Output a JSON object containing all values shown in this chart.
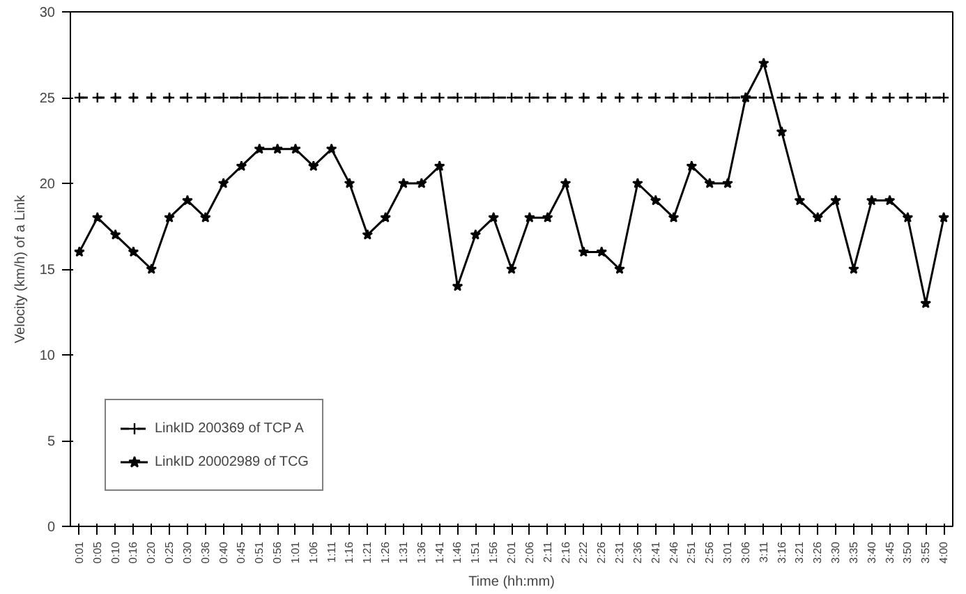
{
  "chart_data": {
    "type": "line",
    "xlabel": "Time (hh:mm)",
    "ylabel": "Velocity (km/h) of a Link",
    "categories": [
      "0:01",
      "0:05",
      "0:10",
      "0:16",
      "0:20",
      "0:25",
      "0:30",
      "0:36",
      "0:40",
      "0:45",
      "0:51",
      "0:56",
      "1:01",
      "1:06",
      "1:11",
      "1:16",
      "1:21",
      "1:26",
      "1:31",
      "1:36",
      "1:41",
      "1:46",
      "1:51",
      "1:56",
      "2:01",
      "2:06",
      "2:11",
      "2:16",
      "2:22",
      "2:26",
      "2:31",
      "2:36",
      "2:41",
      "2:46",
      "2:51",
      "2:56",
      "3:01",
      "3:06",
      "3:11",
      "3:16",
      "3:21",
      "3:26",
      "3:30",
      "3:35",
      "3:40",
      "3:45",
      "3:50",
      "3:55",
      "4:00"
    ],
    "series": [
      {
        "name": "LinkID 200369 of TCP A",
        "color": "#000000",
        "marker": "cross",
        "line_style": "dashed",
        "values": [
          25,
          25,
          25,
          25,
          25,
          25,
          25,
          25,
          25,
          25,
          25,
          25,
          25,
          25,
          25,
          25,
          25,
          25,
          25,
          25,
          25,
          25,
          25,
          25,
          25,
          25,
          25,
          25,
          25,
          25,
          25,
          25,
          25,
          25,
          25,
          25,
          25,
          25,
          25,
          25,
          25,
          25,
          25,
          25,
          25,
          25,
          25,
          25,
          25
        ]
      },
      {
        "name": "LinkID 20002989 of TCG",
        "color": "#000000",
        "marker": "star",
        "line_style": "solid",
        "values": [
          16,
          18,
          17,
          16,
          15,
          18,
          19,
          18,
          20,
          21,
          22,
          22,
          22,
          21,
          22,
          20,
          17,
          18,
          20,
          20,
          21,
          14,
          17,
          18,
          15,
          18,
          18,
          20,
          16,
          16,
          15,
          20,
          19,
          18,
          21,
          20,
          20,
          25,
          27,
          23,
          19,
          18,
          19,
          15,
          19,
          19,
          18,
          13,
          18
        ]
      }
    ],
    "ylim": [
      0,
      30
    ],
    "yticks": [
      0,
      5,
      10,
      15,
      20,
      25,
      30
    ],
    "grid": false,
    "legend": "bottom left"
  }
}
